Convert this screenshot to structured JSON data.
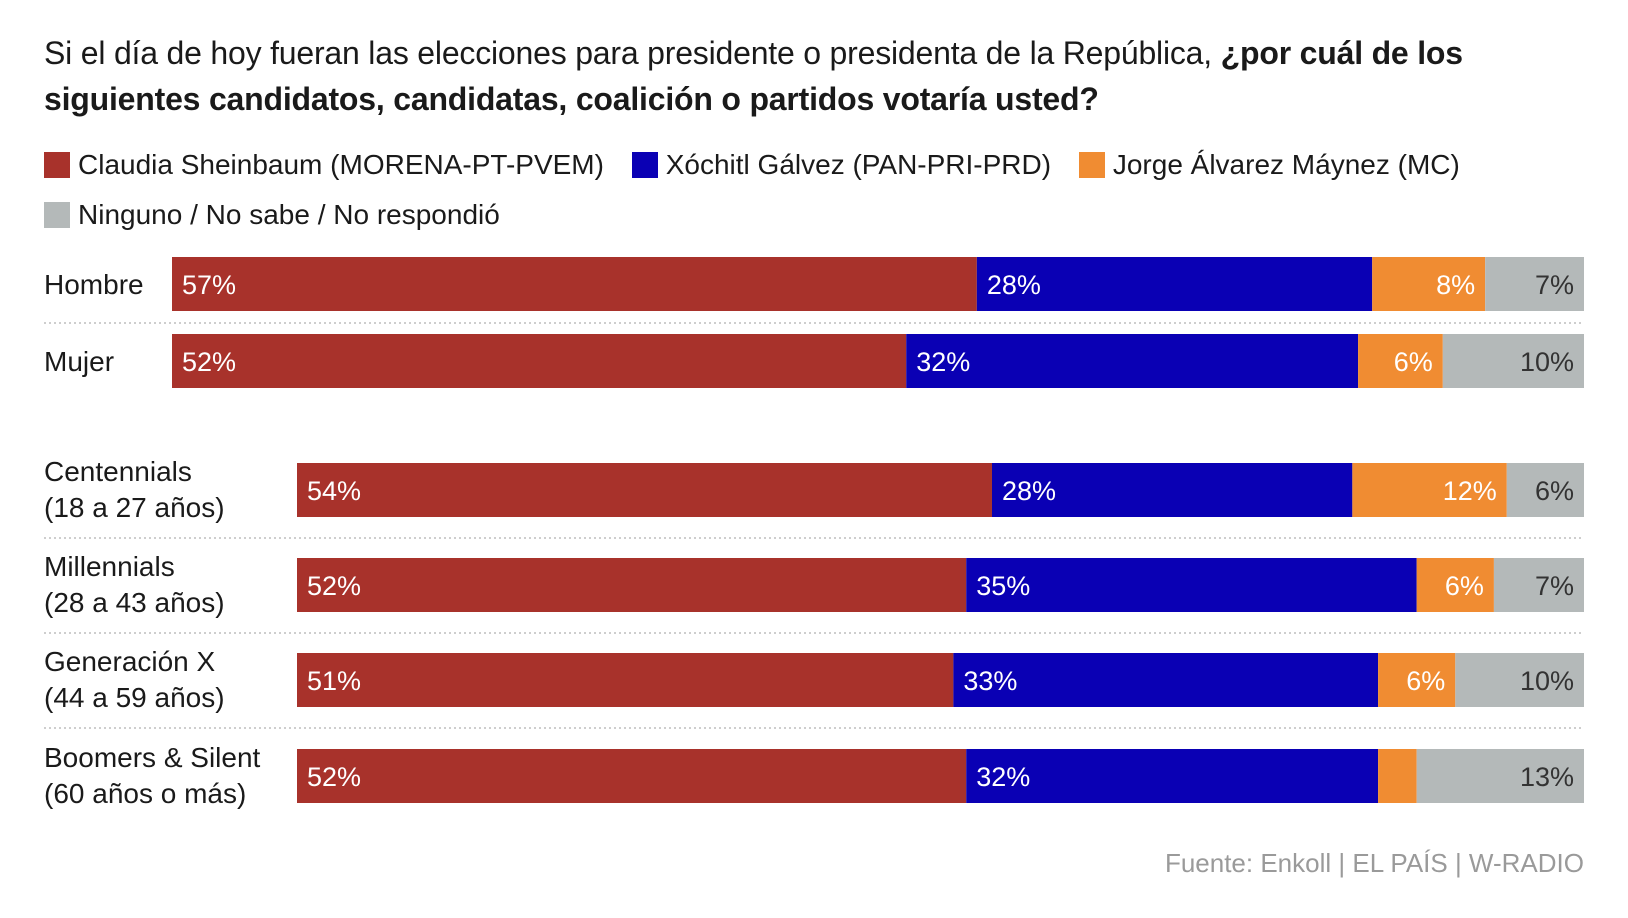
{
  "title": {
    "regular": "Si el día de hoy fueran las elecciones para presidente o presidenta de la República, ",
    "bold": "¿por cuál de los siguientes candidatos, candidatas, coalición o partidos votaría usted?"
  },
  "source": "Fuente: Enkoll | EL PAÍS | W-RADIO",
  "chart_data": {
    "type": "bar",
    "orientation": "horizontal",
    "stacked": true,
    "normalized_percent": true,
    "title": "Si el día de hoy fueran las elecciones para presidente o presidenta de la República, ¿por cuál de los siguientes candidatos, candidatas, coalición o partidos votaría usted?",
    "legend_position": "top",
    "grid": false,
    "series": [
      {
        "name": "Claudia Sheinbaum (MORENA-PT-PVEM)",
        "color": "#a8322b"
      },
      {
        "name": "Xóchitl Gálvez (PAN-PRI-PRD)",
        "color": "#0a00b4"
      },
      {
        "name": "Jorge Álvarez Máynez (MC)",
        "color": "#f08c32"
      },
      {
        "name": "Ninguno / No sabe / No respondió",
        "color": "#b4b9b9"
      }
    ],
    "groups": [
      {
        "rows": [
          {
            "label": [
              "Hombre"
            ],
            "values": [
              57,
              28,
              8,
              7
            ],
            "labels": [
              "57%",
              "28%",
              "8%",
              "7%"
            ]
          },
          {
            "label": [
              "Mujer"
            ],
            "values": [
              52,
              32,
              6,
              10
            ],
            "labels": [
              "52%",
              "32%",
              "6%",
              "10%"
            ]
          }
        ]
      },
      {
        "rows": [
          {
            "label": [
              "Centennials",
              "(18 a 27 años)"
            ],
            "values": [
              54,
              28,
              12,
              6
            ],
            "labels": [
              "54%",
              "28%",
              "12%",
              "6%"
            ]
          },
          {
            "label": [
              "Millennials",
              "(28 a 43 años)"
            ],
            "values": [
              52,
              35,
              6,
              7
            ],
            "labels": [
              "52%",
              "35%",
              "6%",
              "7%"
            ]
          },
          {
            "label": [
              "Generación X",
              "(44 a 59 años)"
            ],
            "values": [
              51,
              33,
              6,
              10
            ],
            "labels": [
              "51%",
              "33%",
              "6%",
              "10%"
            ]
          },
          {
            "label": [
              "Boomers & Silent",
              "(60 años o más)"
            ],
            "values": [
              52,
              32,
              3,
              13
            ],
            "labels": [
              "52%",
              "32%",
              "",
              "13%"
            ]
          }
        ]
      }
    ]
  }
}
